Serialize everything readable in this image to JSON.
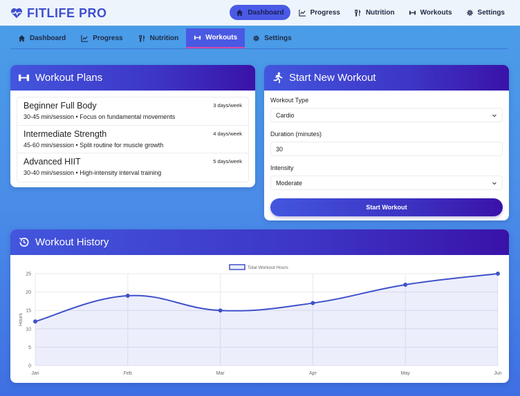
{
  "app": {
    "brand": "FITLIFE PRO",
    "colors": {
      "accent": "#4a5ae6",
      "header_start": "#4356de",
      "header_end": "#3a12a8",
      "tab_underline": "#d84aa8",
      "line": "#3f51c9"
    }
  },
  "top_nav": {
    "items": [
      {
        "label": "Dashboard",
        "icon": "home-icon",
        "active": true
      },
      {
        "label": "Progress",
        "icon": "chart-line-icon",
        "active": false
      },
      {
        "label": "Nutrition",
        "icon": "utensils-icon",
        "active": false
      },
      {
        "label": "Workouts",
        "icon": "dumbbell-icon",
        "active": false
      },
      {
        "label": "Settings",
        "icon": "gear-icon",
        "active": false
      }
    ]
  },
  "sub_nav": {
    "items": [
      {
        "label": "Dashboard",
        "icon": "home-icon",
        "active": false
      },
      {
        "label": "Progress",
        "icon": "chart-line-icon",
        "active": false
      },
      {
        "label": "Nutrition",
        "icon": "utensils-icon",
        "active": false
      },
      {
        "label": "Workouts",
        "icon": "dumbbell-icon",
        "active": true
      },
      {
        "label": "Settings",
        "icon": "gear-icon",
        "active": false
      }
    ]
  },
  "plans": {
    "title": "Workout Plans",
    "items": [
      {
        "name": "Beginner Full Body",
        "description": "30-45 min/session • Focus on fundamental movements",
        "frequency": "3 days/week"
      },
      {
        "name": "Intermediate Strength",
        "description": "45-60 min/session • Split routine for muscle growth",
        "frequency": "4 days/week"
      },
      {
        "name": "Advanced HIIT",
        "description": "30-40 min/session • High-intensity interval training",
        "frequency": "5 days/week"
      }
    ]
  },
  "start_workout": {
    "title": "Start New Workout",
    "type_label": "Workout Type",
    "type_value": "Cardio",
    "duration_label": "Duration (minutes)",
    "duration_value": "30",
    "intensity_label": "Intensity",
    "intensity_value": "Moderate",
    "button_label": "Start Workout"
  },
  "history": {
    "title": "Workout History"
  },
  "chart_data": {
    "type": "line",
    "title": "",
    "categories": [
      "Jan",
      "Feb",
      "Mar",
      "Apr",
      "May",
      "Jun"
    ],
    "series": [
      {
        "name": "Total Workout Hours",
        "values": [
          12,
          19,
          15,
          17,
          22,
          25
        ]
      }
    ],
    "xlabel": "",
    "ylabel": "Hours",
    "ylim": [
      0,
      25
    ],
    "yticks": [
      0,
      5,
      10,
      15,
      20,
      25
    ],
    "grid": true,
    "legend_position": "top",
    "fill": true
  }
}
